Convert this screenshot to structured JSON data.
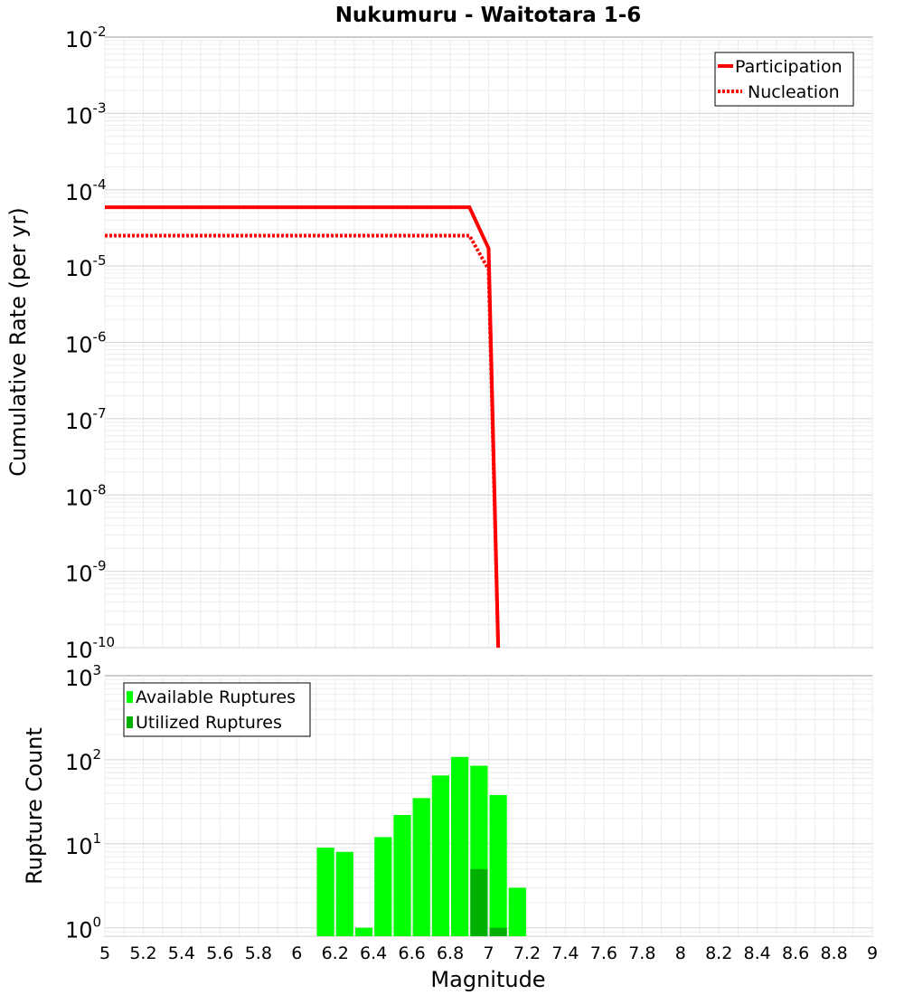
{
  "chart_data": [
    {
      "type": "line",
      "title": "Nukumuru - Waitotara 1-6",
      "ylabel": "Cumulative Rate (per yr)",
      "xlabel": "",
      "xlim": [
        5,
        9
      ],
      "ylim_log10": [
        -10,
        -2
      ],
      "y_scale": "log",
      "y_ticks": [
        {
          "base": "10",
          "exp": "-2"
        },
        {
          "base": "10",
          "exp": "-3"
        },
        {
          "base": "10",
          "exp": "-4"
        },
        {
          "base": "10",
          "exp": "-5"
        },
        {
          "base": "10",
          "exp": "-6"
        },
        {
          "base": "10",
          "exp": "-7"
        },
        {
          "base": "10",
          "exp": "-8"
        },
        {
          "base": "10",
          "exp": "-9"
        },
        {
          "base": "10",
          "exp": "-10"
        }
      ],
      "legend_position": "top-right",
      "series": [
        {
          "name": "Participation",
          "style": "solid",
          "color": "#ff0000",
          "x": [
            5.0,
            6.9,
            7.0,
            7.05
          ],
          "y": [
            5.9e-05,
            5.9e-05,
            1.7e-05,
            1e-10
          ]
        },
        {
          "name": "Nucleation",
          "style": "dotted",
          "color": "#ff0000",
          "x": [
            5.0,
            6.9,
            7.0,
            7.05
          ],
          "y": [
            2.5e-05,
            2.5e-05,
            9e-06,
            1e-10
          ]
        }
      ]
    },
    {
      "type": "bar",
      "title": "",
      "ylabel": "Rupture Count",
      "xlabel": "Magnitude",
      "xlim": [
        5,
        9
      ],
      "ylim_log10": [
        -0.1,
        3
      ],
      "y_scale": "log",
      "y_ticks": [
        {
          "base": "10",
          "exp": "3"
        },
        {
          "base": "10",
          "exp": "2"
        },
        {
          "base": "10",
          "exp": "1"
        },
        {
          "base": "10",
          "exp": "0"
        }
      ],
      "x_ticks": [
        "5",
        "5.2",
        "5.4",
        "5.6",
        "5.8",
        "6",
        "6.2",
        "6.4",
        "6.6",
        "6.8",
        "7",
        "7.2",
        "7.4",
        "7.6",
        "7.8",
        "8",
        "8.2",
        "8.4",
        "8.6",
        "8.8",
        "9"
      ],
      "legend_position": "top-left",
      "bin_width": 0.1,
      "series": [
        {
          "name": "Available Ruptures",
          "color": "#00ff00",
          "x": [
            6.15,
            6.25,
            6.35,
            6.45,
            6.55,
            6.65,
            6.75,
            6.85,
            6.95,
            7.05,
            7.15
          ],
          "values": [
            9,
            8,
            1,
            12,
            22,
            35,
            65,
            108,
            85,
            38,
            3
          ]
        },
        {
          "name": "Utilized Ruptures",
          "color": "#00b000",
          "x": [
            6.95,
            7.05
          ],
          "values": [
            5,
            1
          ]
        }
      ]
    }
  ]
}
